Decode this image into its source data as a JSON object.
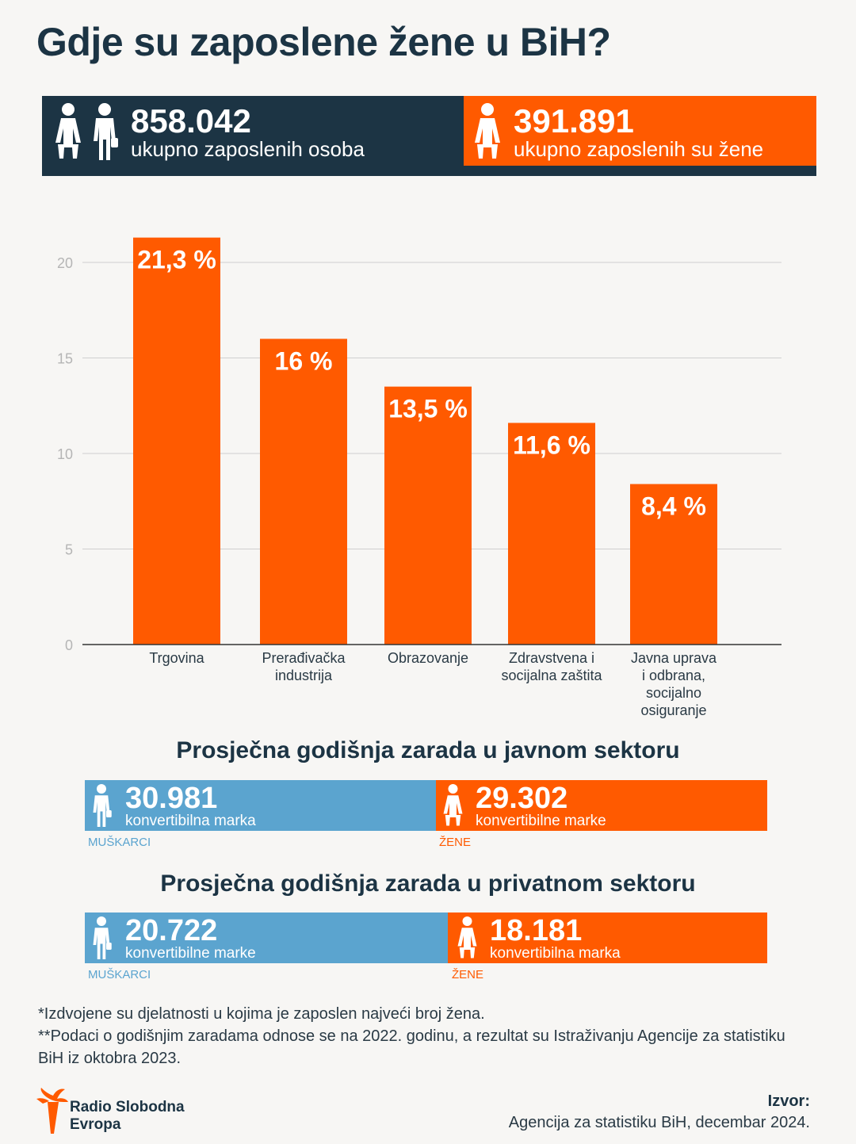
{
  "title": "Gdje su zaposlene žene u BiH?",
  "totals": {
    "all_number": "858.042",
    "all_label": "ukupno zaposlenih osoba",
    "women_number": "391.891",
    "women_label": "ukupno zaposlenih su žene"
  },
  "colors": {
    "navy": "#1c3444",
    "orange": "#ff5a00",
    "blue": "#5ba4cf"
  },
  "chart_data": {
    "type": "bar",
    "categories": [
      "Trgovina",
      "Prerađivačka industrija",
      "Obrazovanje",
      "Zdravstvena i socijalna zaštita",
      "Javna uprava i odbrana, socijalno osiguranje"
    ],
    "category_lines": [
      [
        "Trgovina"
      ],
      [
        "Prerađivačka",
        "industrija"
      ],
      [
        "Obrazovanje"
      ],
      [
        "Zdravstvena i",
        "socijalna zaštita"
      ],
      [
        "Javna uprava",
        "i odbrana,",
        "socijalno",
        "osiguranje"
      ]
    ],
    "values": [
      21.3,
      16,
      13.5,
      11.6,
      8.4
    ],
    "data_labels": [
      "21,3 %",
      "16 %",
      "13,5 %",
      "11,6 %",
      "8,4 %"
    ],
    "yticks": [
      0,
      5,
      10,
      15,
      20
    ],
    "ylim": [
      0,
      25
    ],
    "grid": true,
    "xlabel": "",
    "ylabel": ""
  },
  "public_sector": {
    "title": "Prosječna godišnja zarada u javnom sektoru",
    "men_value": "30.981",
    "men_unit": "konvertibilna marka",
    "men_caption": "MUŠKARCI",
    "women_value": "29.302",
    "women_unit": "konvertibilne marke",
    "women_caption": "ŽENE"
  },
  "private_sector": {
    "title": "Prosječna godišnja zarada u privatnom sektoru",
    "men_value": "20.722",
    "men_unit": "konvertibilne marke",
    "men_caption": "MUŠKARCI",
    "women_value": "18.181",
    "women_unit": "konvertibilna marka",
    "women_caption": "ŽENE"
  },
  "notes": {
    "note1": "*Izdvojene su djelatnosti u kojima je zaposlen najveći broj žena.",
    "note2": "**Podaci o godišnjim zaradama odnose se na 2022. godinu, a rezultat su Istraživanju Agencije za statistiku BiH iz oktobra 2023."
  },
  "logo": {
    "line1": "Radio Slobodna",
    "line2": "Evropa",
    "icon": "torch-logo-icon"
  },
  "source": {
    "label": "Izvor:",
    "value": "Agencija za statistiku BiH, decembar 2024."
  }
}
